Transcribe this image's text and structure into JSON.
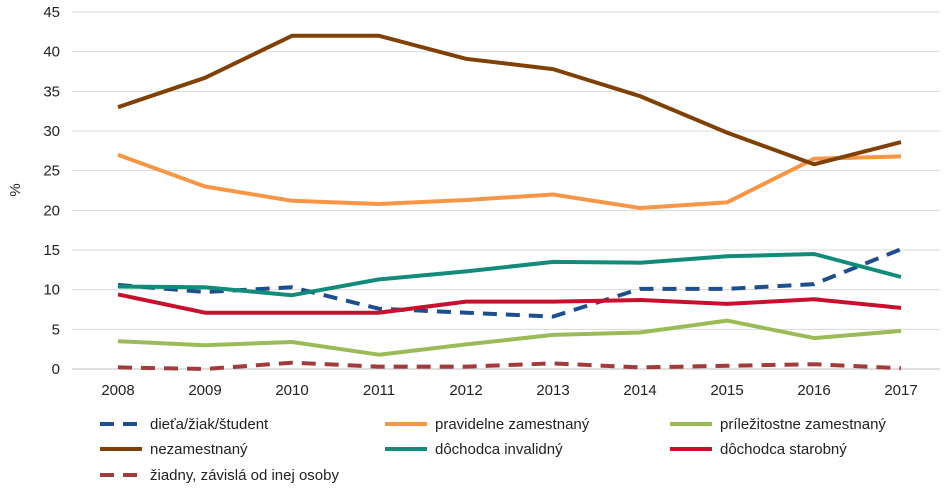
{
  "chart_data": {
    "type": "line",
    "ylabel": "%",
    "ylim": [
      0,
      45
    ],
    "yticks": [
      "0",
      "5",
      "10",
      "15",
      "20",
      "25",
      "30",
      "35",
      "40",
      "45"
    ],
    "grid": true,
    "legend_position": "bottom",
    "categories": [
      "2008",
      "2009",
      "2010",
      "2011",
      "2012",
      "2013",
      "2014",
      "2015",
      "2016",
      "2017"
    ],
    "series": [
      {
        "name": "dieťa/žiak/študent",
        "color": "#1f4e8c",
        "dash": true,
        "values": [
          10.6,
          9.7,
          10.3,
          7.6,
          7.1,
          6.6,
          10.1,
          10.1,
          10.7,
          15.1
        ]
      },
      {
        "name": "pravidelne zamestnaný",
        "color": "#f79646",
        "dash": false,
        "values": [
          27.0,
          23.0,
          21.2,
          20.8,
          21.3,
          22.0,
          20.3,
          21.0,
          26.5,
          26.8
        ]
      },
      {
        "name": "príležitostne zamestnaný",
        "color": "#9bbb59",
        "dash": false,
        "values": [
          3.5,
          3.0,
          3.4,
          1.8,
          3.1,
          4.3,
          4.6,
          6.1,
          3.9,
          4.8
        ]
      },
      {
        "name": "nezamestnaný",
        "color": "#7f4106",
        "dash": false,
        "values": [
          33.0,
          36.7,
          42.0,
          42.0,
          39.1,
          37.8,
          34.4,
          29.8,
          25.8,
          28.6
        ]
      },
      {
        "name": "dôchodca invalidný",
        "color": "#138b7b",
        "dash": false,
        "values": [
          10.4,
          10.3,
          9.3,
          11.3,
          12.3,
          13.5,
          13.4,
          14.2,
          14.5,
          11.6
        ]
      },
      {
        "name": "dôchodca starobný",
        "color": "#c8102e",
        "dash": false,
        "values": [
          9.4,
          7.1,
          7.1,
          7.1,
          8.5,
          8.5,
          8.7,
          8.2,
          8.8,
          7.7
        ]
      },
      {
        "name": "žiadny, závislá od inej osoby",
        "color": "#a23b3b",
        "dash": true,
        "values": [
          0.2,
          0.0,
          0.8,
          0.3,
          0.3,
          0.7,
          0.2,
          0.4,
          0.6,
          0.1
        ]
      }
    ]
  }
}
